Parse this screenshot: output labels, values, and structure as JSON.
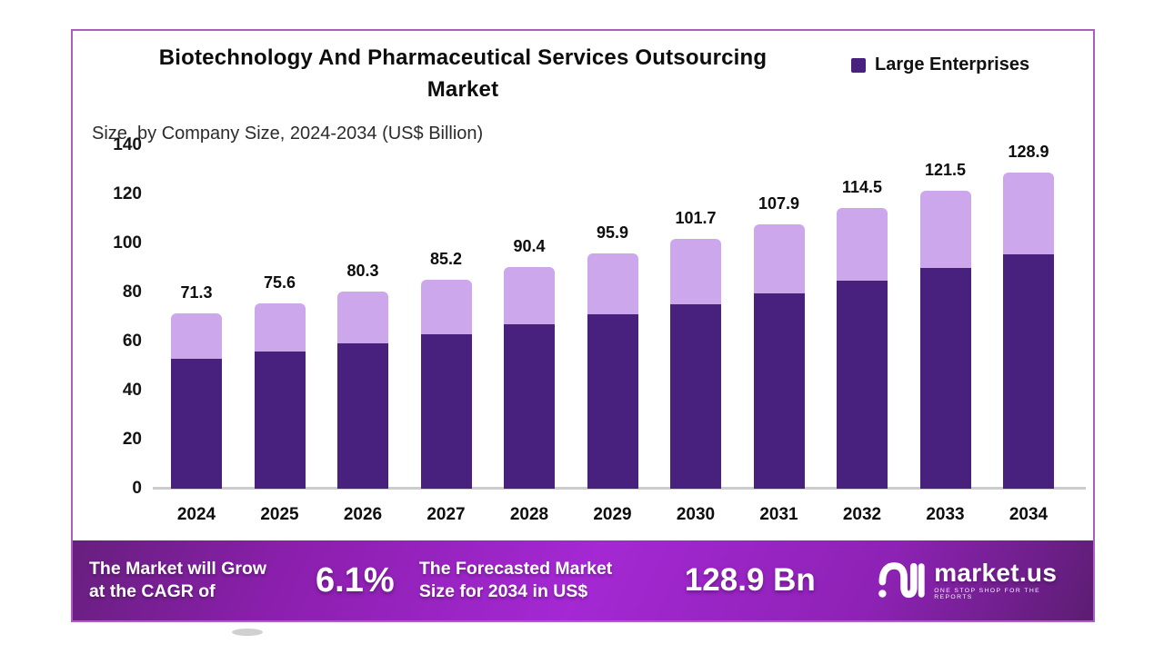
{
  "header": {
    "title": "Biotechnology And Pharmaceutical Services Outsourcing\nMarket",
    "subtitle": "Size, by Company Size, 2024-2034 (US$ Billion)"
  },
  "legend": {
    "items": [
      {
        "label": "Large Enterprises",
        "color": "#48217f"
      }
    ]
  },
  "chart_data": {
    "type": "bar",
    "stacked": true,
    "title": "Biotechnology And Pharmaceutical Services Outsourcing Market",
    "subtitle": "Size, by Company Size, 2024-2034 (US$ Billion)",
    "unit": "US$ Billion",
    "categories": [
      "2024",
      "2025",
      "2026",
      "2027",
      "2028",
      "2029",
      "2030",
      "2031",
      "2032",
      "2033",
      "2034"
    ],
    "totals": [
      71.3,
      75.6,
      80.3,
      85.2,
      90.4,
      95.9,
      101.7,
      107.9,
      114.5,
      121.5,
      128.9
    ],
    "series": [
      {
        "name": "Large Enterprises",
        "color": "#48217f",
        "values": [
          52.8,
          55.9,
          59.4,
          63.0,
          66.9,
          71.0,
          75.3,
          79.8,
          84.7,
          89.9,
          95.4
        ]
      },
      {
        "name": "",
        "color": "#cda7ec",
        "values": [
          18.5,
          19.7,
          20.9,
          22.2,
          23.5,
          24.9,
          26.4,
          28.1,
          29.8,
          31.6,
          33.5
        ]
      }
    ],
    "ylim": [
      0,
      140
    ],
    "yticks": [
      0,
      20,
      40,
      60,
      80,
      100,
      120,
      140
    ],
    "grid": false,
    "legend_position": "top-right",
    "value_label_style": "total above each bar"
  },
  "footer": {
    "growth_text": "The Market will Grow\nat the CAGR of",
    "cagr": "6.1%",
    "forecast_text": "The Forecasted Market\nSize for 2034 in US$",
    "forecast_value": "128.9 Bn",
    "brand": "market.us",
    "tagline": "ONE STOP SHOP FOR THE REPORTS"
  },
  "colors": {
    "bar_dark": "#48217f",
    "bar_light": "#cda7ec",
    "card_border": "#a85fc0",
    "axis_line": "#cccccc",
    "footer_gradient": [
      "#671f7d",
      "#a428d3",
      "#5c1d72"
    ],
    "footer_text": "#ffffff",
    "background": "#ffffff"
  }
}
